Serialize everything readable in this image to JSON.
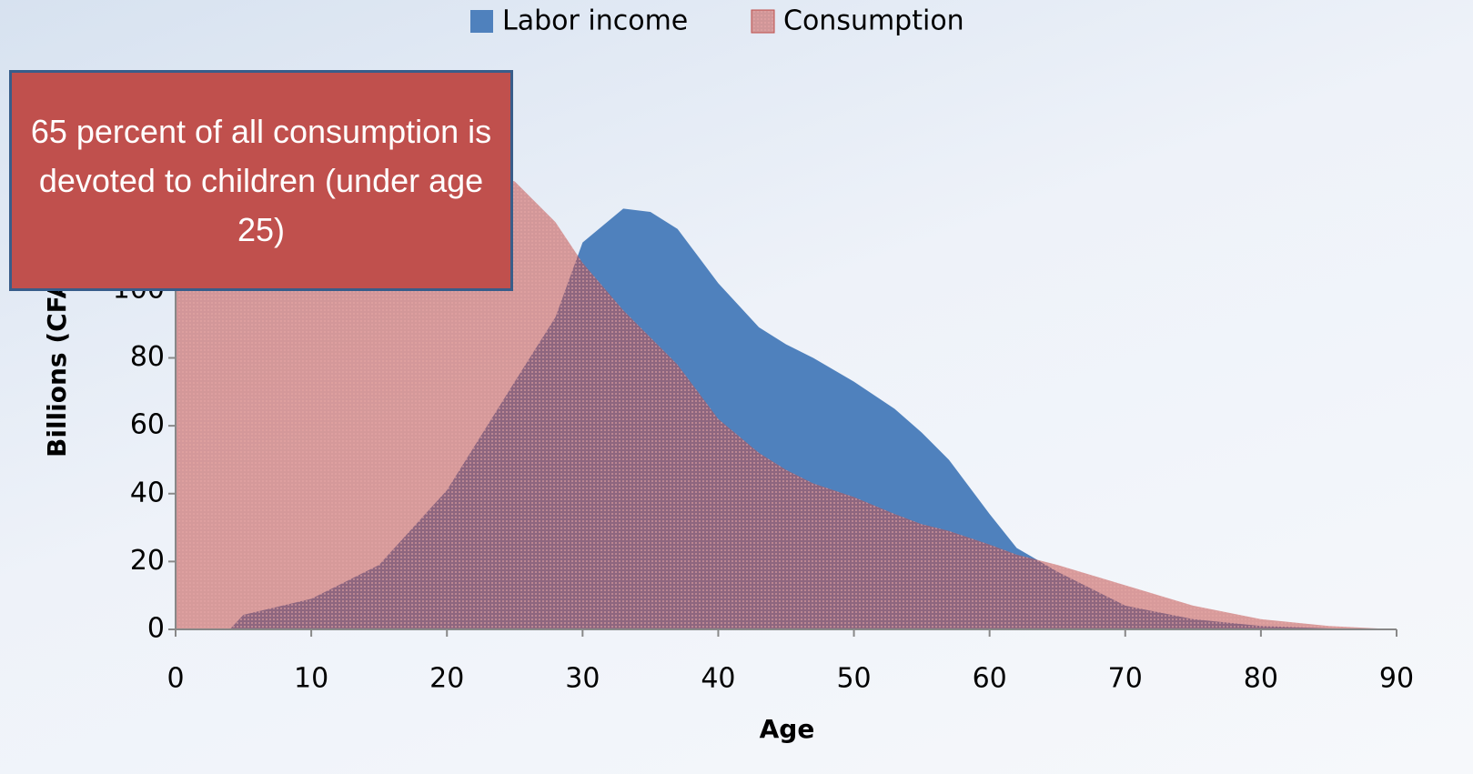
{
  "chart_data": {
    "type": "area",
    "x_label": "Age",
    "y_label": "Billions (CFA francs)",
    "annotation": "65 percent of all consumption is devoted to children (under age 25)",
    "legend": "top",
    "x": [
      0,
      4,
      5,
      10,
      15,
      20,
      25,
      28,
      30,
      33,
      35,
      37,
      40,
      43,
      45,
      47,
      50,
      53,
      55,
      57,
      60,
      62,
      65,
      70,
      75,
      80,
      85,
      90
    ],
    "series": [
      {
        "name": "Labor income",
        "color": "#4f81bd",
        "values": [
          null,
          0,
          4.3,
          9,
          19,
          41,
          73,
          92,
          114,
          124,
          123,
          118,
          102,
          89,
          84,
          80,
          73,
          65,
          58,
          50,
          34,
          24,
          17,
          7,
          3,
          1,
          0.3,
          0
        ]
      },
      {
        "name": "Consumption",
        "color": "#c0504d",
        "values": [
          120,
          127,
          128,
          133,
          136,
          137,
          132,
          120,
          108,
          94,
          86,
          78,
          62,
          52,
          47,
          43,
          39,
          34,
          31,
          29,
          25,
          22,
          19,
          13,
          7,
          3,
          1,
          0
        ]
      }
    ],
    "xlim": [
      0,
      90
    ],
    "xticks": [
      0,
      10,
      20,
      30,
      40,
      50,
      60,
      70,
      80,
      90
    ],
    "ylim": [
      0,
      160
    ],
    "yticks": [
      0,
      20,
      40,
      60,
      80,
      100,
      120,
      140,
      160
    ]
  }
}
